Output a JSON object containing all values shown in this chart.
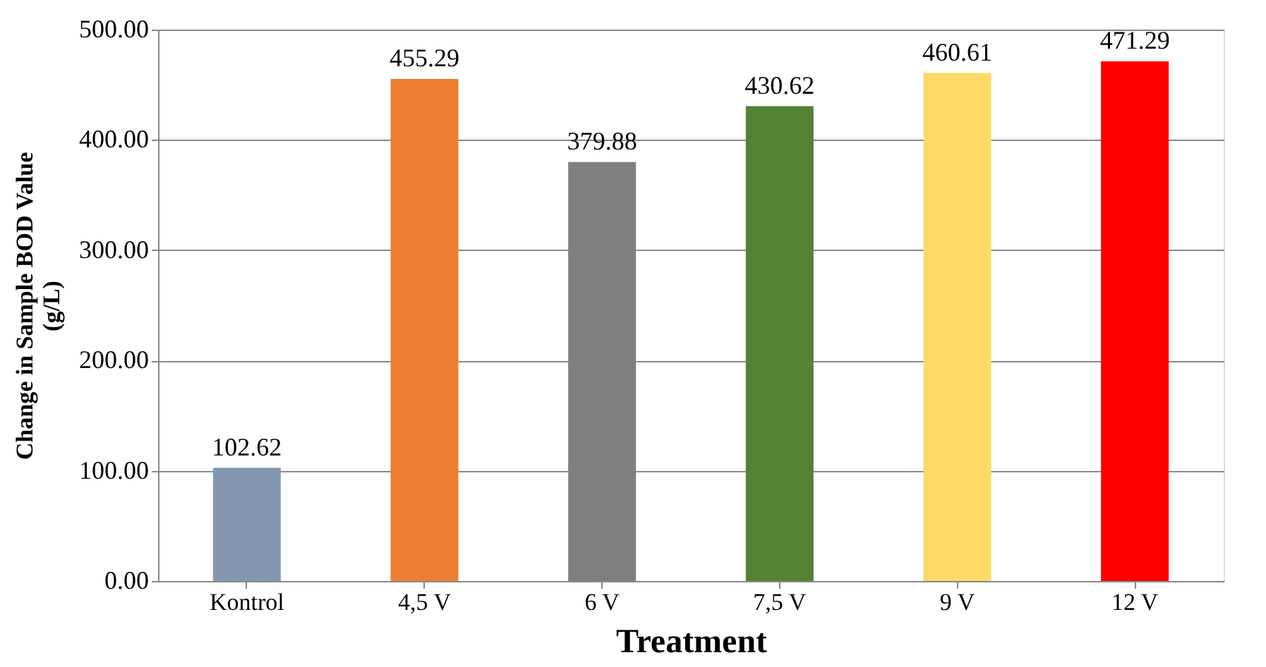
{
  "chart_data": {
    "type": "bar",
    "xlabel": "Treatment",
    "ylabel": "Change in Sample BOD Value\n(g/L)",
    "categories": [
      "Kontrol",
      "4,5 V",
      "6 V",
      "7,5 V",
      "9 V",
      "12 V"
    ],
    "values": [
      102.62,
      455.29,
      379.88,
      430.62,
      460.61,
      471.29
    ],
    "colors": [
      "#8497b0",
      "#ed7d31",
      "#7f7f7f",
      "#548235",
      "#ffd966",
      "#ff0000"
    ],
    "ylim": [
      0,
      500
    ],
    "yticks": [
      {
        "value": 0,
        "label": "0.00"
      },
      {
        "value": 100,
        "label": "100.00"
      },
      {
        "value": 200,
        "label": "200.00"
      },
      {
        "value": 300,
        "label": "300.00"
      },
      {
        "value": 400,
        "label": "400.00"
      },
      {
        "value": 500,
        "label": "500.00"
      }
    ],
    "grid": "y",
    "data_labels": true
  }
}
